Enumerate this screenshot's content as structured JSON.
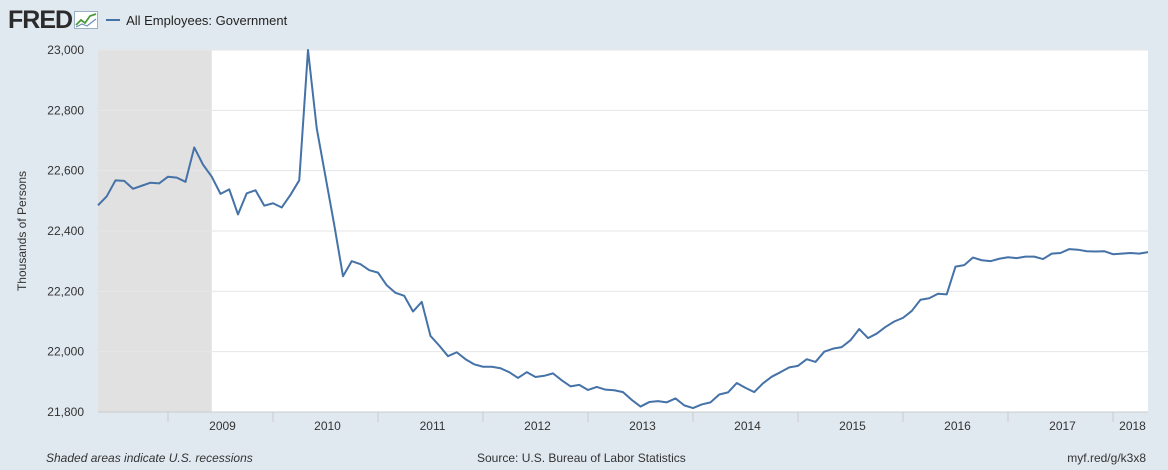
{
  "header": {
    "logo_text": "FRED",
    "logo_icon": "chart-line-icon",
    "legend_label": "All Employees: Government"
  },
  "footer": {
    "note": "Shaded areas indicate U.S. recessions",
    "source": "Source: U.S. Bureau of Labor Statistics",
    "link": "myf.red/g/k3x8"
  },
  "colors": {
    "series": "#4572a7",
    "background": "#e1e9f0",
    "plot": "#ffffff",
    "recession": "#e1e1e1"
  },
  "chart_data": {
    "type": "line",
    "title": "",
    "xlabel": "",
    "ylabel": "Thousands of Persons",
    "ylim": [
      21800,
      23000
    ],
    "xlim": [
      "2008-05",
      "2018-05"
    ],
    "yticks": [
      "21,800",
      "22,000",
      "22,200",
      "22,400",
      "22,600",
      "22,800",
      "23,000"
    ],
    "ytick_values": [
      21800,
      22000,
      22200,
      22400,
      22600,
      22800,
      23000
    ],
    "xticks": [
      "2009",
      "2010",
      "2011",
      "2012",
      "2013",
      "2014",
      "2015",
      "2016",
      "2017",
      "2018"
    ],
    "grid": true,
    "legend_position": "top-left",
    "recessions": [
      {
        "start": "2008-05",
        "end": "2009-06"
      }
    ],
    "series": [
      {
        "name": "All Employees: Government",
        "x": [
          "2008-05",
          "2008-06",
          "2008-07",
          "2008-08",
          "2008-09",
          "2008-10",
          "2008-11",
          "2008-12",
          "2009-01",
          "2009-02",
          "2009-03",
          "2009-04",
          "2009-05",
          "2009-06",
          "2009-07",
          "2009-08",
          "2009-09",
          "2009-10",
          "2009-11",
          "2009-12",
          "2010-01",
          "2010-02",
          "2010-03",
          "2010-04",
          "2010-05",
          "2010-06",
          "2010-07",
          "2010-08",
          "2010-09",
          "2010-10",
          "2010-11",
          "2010-12",
          "2011-01",
          "2011-02",
          "2011-03",
          "2011-04",
          "2011-05",
          "2011-06",
          "2011-07",
          "2011-08",
          "2011-09",
          "2011-10",
          "2011-11",
          "2011-12",
          "2012-01",
          "2012-02",
          "2012-03",
          "2012-04",
          "2012-05",
          "2012-06",
          "2012-07",
          "2012-08",
          "2012-09",
          "2012-10",
          "2012-11",
          "2012-12",
          "2013-01",
          "2013-02",
          "2013-03",
          "2013-04",
          "2013-05",
          "2013-06",
          "2013-07",
          "2013-08",
          "2013-09",
          "2013-10",
          "2013-11",
          "2013-12",
          "2014-01",
          "2014-02",
          "2014-03",
          "2014-04",
          "2014-05",
          "2014-06",
          "2014-07",
          "2014-08",
          "2014-09",
          "2014-10",
          "2014-11",
          "2014-12",
          "2015-01",
          "2015-02",
          "2015-03",
          "2015-04",
          "2015-05",
          "2015-06",
          "2015-07",
          "2015-08",
          "2015-09",
          "2015-10",
          "2015-11",
          "2015-12",
          "2016-01",
          "2016-02",
          "2016-03",
          "2016-04",
          "2016-05",
          "2016-06",
          "2016-07",
          "2016-08",
          "2016-09",
          "2016-10",
          "2016-11",
          "2016-12",
          "2017-01",
          "2017-02",
          "2017-03",
          "2017-04",
          "2017-05",
          "2017-06",
          "2017-07",
          "2017-08",
          "2017-09",
          "2017-10",
          "2017-11",
          "2017-12",
          "2018-01",
          "2018-02",
          "2018-03",
          "2018-04",
          "2018-05"
        ],
        "values": [
          22485,
          22515,
          22568,
          22566,
          22540,
          22550,
          22560,
          22558,
          22580,
          22577,
          22563,
          22677,
          22620,
          22580,
          22523,
          22538,
          22455,
          22525,
          22535,
          22484,
          22492,
          22478,
          22520,
          22568,
          23000,
          22740,
          22580,
          22420,
          22250,
          22300,
          22290,
          22270,
          22262,
          22220,
          22195,
          22185,
          22133,
          22165,
          22052,
          22020,
          21985,
          21998,
          21975,
          21958,
          21950,
          21950,
          21945,
          21932,
          21913,
          21932,
          21916,
          21920,
          21928,
          21905,
          21885,
          21890,
          21873,
          21883,
          21874,
          21872,
          21866,
          21840,
          21818,
          21833,
          21836,
          21832,
          21845,
          21822,
          21813,
          21825,
          21832,
          21858,
          21865,
          21896,
          21880,
          21866,
          21895,
          21917,
          21932,
          21948,
          21953,
          21975,
          21966,
          22000,
          22010,
          22015,
          22038,
          22075,
          22045,
          22060,
          22082,
          22100,
          22112,
          22135,
          22172,
          22177,
          22192,
          22190,
          22282,
          22287,
          22312,
          22303,
          22300,
          22308,
          22313,
          22310,
          22315,
          22315,
          22307,
          22325,
          22327,
          22340,
          22338,
          22333,
          22332,
          22333,
          22323,
          22325,
          22327,
          22325,
          22330
        ]
      }
    ]
  }
}
